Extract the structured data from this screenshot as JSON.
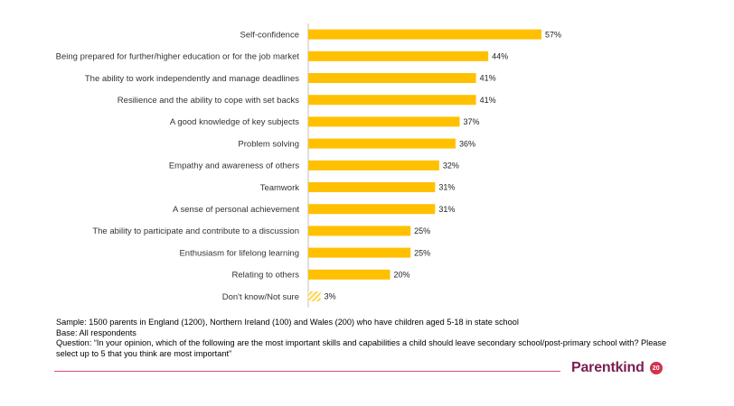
{
  "chart_data": {
    "type": "bar",
    "orientation": "horizontal",
    "categories": [
      "Self-confidence",
      "Being prepared for further/higher education or for the job market",
      "The ability to work independently and manage deadlines",
      "Resilience and the ability to cope with set backs",
      "A good knowledge of key subjects",
      "Problem solving",
      "Empathy and awareness of others",
      "Teamwork",
      "A sense of personal achievement",
      "The ability to participate and contribute to a discussion",
      "Enthusiasm for lifelong learning",
      "Relating to others",
      "Don't know/Not sure"
    ],
    "values": [
      57,
      44,
      41,
      41,
      37,
      36,
      32,
      31,
      31,
      25,
      25,
      20,
      3
    ],
    "value_labels": [
      "57%",
      "44%",
      "41%",
      "41%",
      "37%",
      "36%",
      "32%",
      "31%",
      "31%",
      "25%",
      "25%",
      "20%",
      "3%"
    ],
    "hatched": [
      false,
      false,
      false,
      false,
      false,
      false,
      false,
      false,
      false,
      false,
      false,
      false,
      true
    ],
    "xlim": [
      0,
      100
    ],
    "bar_color": "#ffc000",
    "hatch_color": "#ffc000",
    "axis_color": "#bfbfbf",
    "grid": false
  },
  "notes": {
    "sample": "Sample: 1500 parents in England (1200), Northern Ireland (100) and Wales (200) who have children aged 5-18 in state school",
    "base": "Base: All respondents",
    "question": "Question: “In your opinion, which of the following are the most important skills and capabilities a child should leave secondary school/post-primary school with? Please select up to 5 that you think are most important”"
  },
  "logo": {
    "name": "Parentkind",
    "badge": "20"
  },
  "colors": {
    "footer_line": "#d94f6f",
    "logo_text": "#7a1f4f",
    "logo_badge": "#d4314e"
  }
}
